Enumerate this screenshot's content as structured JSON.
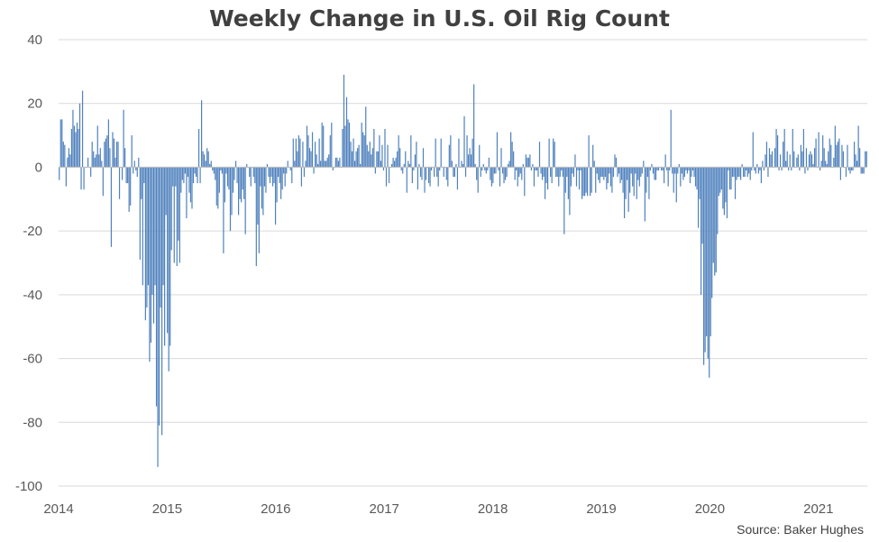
{
  "chart_data": {
    "type": "bar",
    "title": "Weekly Change in U.S. Oil Rig Count",
    "source": "Source: Baker Hughes",
    "xlabel": "",
    "ylabel": "",
    "ylim": [
      -100,
      40
    ],
    "yticks": [
      40,
      20,
      0,
      -20,
      -40,
      -60,
      -80,
      -100
    ],
    "xlim": [
      2014.0,
      2021.45
    ],
    "xticks": [
      "2014",
      "2015",
      "2016",
      "2017",
      "2018",
      "2019",
      "2020",
      "2021"
    ],
    "grid": true,
    "bar_color": "#4f81bd",
    "series": [
      {
        "values": [
          -4,
          15,
          15,
          8,
          7,
          -6,
          3,
          6,
          4,
          12,
          18,
          13,
          11,
          14,
          12,
          20,
          -7,
          24,
          -7,
          0,
          0,
          3,
          0,
          -3,
          8,
          5,
          3,
          4,
          13,
          4,
          6,
          2,
          -9,
          8,
          9,
          10,
          15,
          6,
          -25,
          11,
          9,
          3,
          8,
          8,
          -10,
          0,
          -4,
          18,
          6,
          -5,
          -5,
          -14,
          -12,
          10,
          -2,
          2,
          -1,
          -3,
          3,
          -29,
          -10,
          -37,
          -5,
          -48,
          -44,
          -37,
          -61,
          -55,
          -40,
          -49,
          -37,
          -75,
          -94,
          -81,
          -44,
          -84,
          -37,
          -56,
          -15,
          -52,
          -64,
          -56,
          -26,
          -6,
          -30,
          -6,
          -31,
          -23,
          -30,
          -8,
          -4,
          -5,
          -2,
          -16,
          -3,
          -8,
          -11,
          -13,
          -5,
          -2,
          -3,
          -5,
          12,
          -5,
          21,
          5,
          4,
          2,
          6,
          5,
          1,
          2,
          -1,
          -2,
          -4,
          -12,
          -13,
          -8,
          -1,
          -2,
          -27,
          -11,
          -2,
          -6,
          -7,
          -20,
          -15,
          -8,
          -4,
          2,
          -5,
          -15,
          -10,
          -11,
          -7,
          -10,
          -21,
          1,
          0,
          -3,
          -6,
          0,
          -3,
          -5,
          -31,
          -18,
          -27,
          -6,
          -13,
          -15,
          -6,
          -8,
          1,
          -3,
          -5,
          -3,
          -6,
          -5,
          -18,
          -11,
          -3,
          -5,
          -10,
          -7,
          -2,
          -6,
          -2,
          2,
          0,
          -1,
          -5,
          9,
          2,
          9,
          5,
          10,
          9,
          -6,
          8,
          -3,
          2,
          13,
          10,
          6,
          5,
          11,
          -2,
          8,
          4,
          1,
          9,
          2,
          14,
          13,
          2,
          2,
          3,
          4,
          10,
          14,
          -1,
          0,
          3,
          3,
          2,
          3,
          0,
          12,
          29,
          13,
          22,
          15,
          14,
          8,
          5,
          9,
          2,
          5,
          6,
          7,
          1,
          14,
          11,
          10,
          19,
          7,
          5,
          8,
          4,
          6,
          12,
          -2,
          5,
          5,
          10,
          2,
          7,
          -1,
          12,
          -6,
          7,
          -5,
          0,
          1,
          3,
          2,
          3,
          5,
          10,
          6,
          -1,
          -2,
          1,
          5,
          -8,
          2,
          1,
          10,
          -5,
          -1,
          4,
          8,
          -7,
          1,
          -3,
          -4,
          6,
          -8,
          -4,
          0,
          -5,
          -6,
          -1,
          0,
          -3,
          9,
          -3,
          -6,
          -1,
          9,
          0,
          -3,
          0,
          -4,
          -6,
          7,
          10,
          2,
          -3,
          -3,
          1,
          -7,
          9,
          0,
          2,
          1,
          16,
          -3,
          10,
          4,
          6,
          4,
          9,
          26,
          1,
          -4,
          -8,
          7,
          -3,
          -1,
          1,
          -1,
          -2,
          -1,
          3,
          -4,
          -6,
          -5,
          -2,
          -2,
          11,
          -1,
          -6,
          6,
          -2,
          -5,
          -4,
          -3,
          1,
          2,
          11,
          8,
          5,
          -4,
          -1,
          -6,
          -3,
          -2,
          -4,
          1,
          -9,
          4,
          3,
          3,
          4,
          -1,
          1,
          -6,
          -1,
          -1,
          -3,
          8,
          -2,
          -4,
          -3,
          -10,
          -5,
          -7,
          9,
          -3,
          -5,
          9,
          8,
          -3,
          -3,
          -6,
          -3,
          -1,
          -3,
          -21,
          -8,
          -3,
          -10,
          -15,
          -6,
          -2,
          -3,
          4,
          -6,
          -1,
          -7,
          -1,
          -10,
          -9,
          -9,
          -8,
          -9,
          10,
          -9,
          -8,
          7,
          2,
          -8,
          -2,
          -4,
          -5,
          -3,
          -3,
          -4,
          -3,
          -7,
          -5,
          -2,
          -6,
          -8,
          -3,
          4,
          3,
          -3,
          -2,
          -5,
          -4,
          -8,
          -16,
          -10,
          -4,
          -14,
          -8,
          -2,
          -6,
          -9,
          -2,
          -10,
          -4,
          -6,
          -3,
          -2,
          2,
          -17,
          -8,
          -3,
          -10,
          -1,
          1,
          -2,
          -4,
          -4,
          -1,
          -1,
          0,
          -1,
          -1,
          -5,
          4,
          -1,
          -6,
          -1,
          18,
          -2,
          -8,
          -2,
          -11,
          -2,
          1,
          -6,
          -2,
          -4,
          -3,
          -1,
          -2,
          -1,
          -5,
          -3,
          -1,
          -3,
          -6,
          -7,
          -19,
          -10,
          -40,
          -24,
          -62,
          -58,
          -53,
          -60,
          -66,
          -53,
          -41,
          -30,
          -34,
          -33,
          -21,
          -9,
          -8,
          -7,
          -13,
          -15,
          -11,
          -16,
          -1,
          -7,
          -7,
          -3,
          -3,
          -10,
          -4,
          -3,
          -3,
          -4,
          1,
          -3,
          -3,
          -1,
          -3,
          -2,
          -4,
          -1,
          11,
          -1,
          -2,
          1,
          -2,
          -1,
          -5,
          2,
          -1,
          4,
          8,
          -3,
          6,
          4,
          5,
          0,
          6,
          12,
          10,
          -1,
          4,
          -1,
          8,
          12,
          2,
          5,
          -1,
          4,
          -1,
          12,
          5,
          0,
          3,
          4,
          -1,
          7,
          5,
          12,
          -2,
          6,
          -1,
          4,
          5,
          4,
          1,
          6,
          9,
          0,
          11,
          -1,
          2,
          10,
          6,
          2,
          1,
          5,
          9,
          7,
          0,
          3,
          13,
          7,
          8,
          9,
          -4,
          7,
          5,
          0,
          -3,
          7,
          -1,
          -2,
          -1,
          -1,
          8,
          4,
          2,
          13,
          6,
          -2,
          -2,
          -2,
          5,
          5
        ]
      }
    ]
  }
}
